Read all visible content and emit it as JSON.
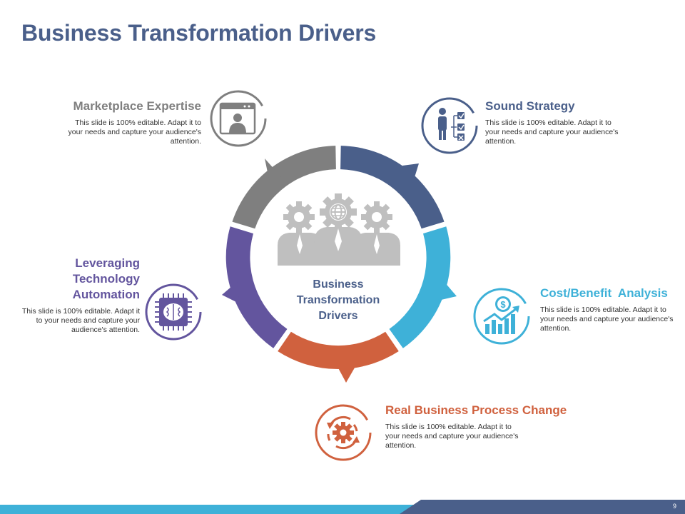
{
  "slide": {
    "title": "Business Transformation Drivers",
    "page_number": "9"
  },
  "center": {
    "line1": "Business",
    "line2": "Transformation",
    "line3": "Drivers"
  },
  "colors": {
    "gray": "#7F7F7F",
    "navy": "#4A5F8A",
    "cyan": "#3EB1D8",
    "orange": "#D0613E",
    "purple": "#63559E",
    "light_gray": "#BFBFBF"
  },
  "drivers": {
    "marketplace": {
      "title": "Marketplace Expertise",
      "body": "This slide is 100% editable. Adapt it to your needs and capture your audience's attention.",
      "icon": "browser-person-icon"
    },
    "strategy": {
      "title": "Sound Strategy",
      "body": "This slide is 100% editable. Adapt it to your needs and capture your audience's attention.",
      "icon": "person-checklist-icon"
    },
    "technology": {
      "title_line1": "Leveraging",
      "title_line2": "Technology",
      "title_line3": "Automation",
      "body": "This slide is 100% editable. Adapt it to your needs and capture your audience's attention.",
      "icon": "chip-brain-icon"
    },
    "cost": {
      "title": "Cost/Benefit  Analysis",
      "body": "This slide is 100% editable. Adapt it to your needs and capture your audience's attention.",
      "icon": "dollar-growth-chart-icon"
    },
    "process": {
      "title": "Real Business Process Change",
      "body": "This slide is 100% editable. Adapt it to your needs and capture your audience's attention.",
      "icon": "gear-cycle-icon"
    }
  }
}
